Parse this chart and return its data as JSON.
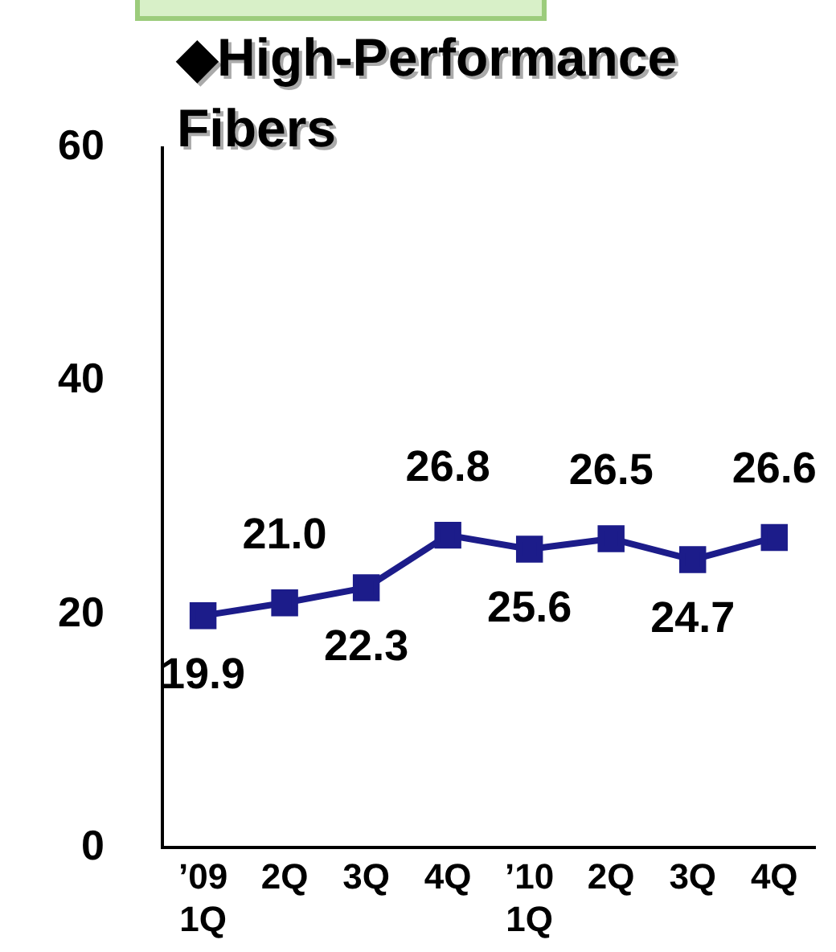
{
  "chart_data": {
    "type": "line",
    "title": "◆High-Performance Fibers",
    "categories": [
      "’09\n1Q",
      "2Q",
      "3Q",
      "4Q",
      "’10\n1Q",
      "2Q",
      "3Q",
      "4Q"
    ],
    "series": [
      {
        "color": "#1c1c8a",
        "values": [
          19.9,
          21.0,
          22.3,
          26.8,
          25.6,
          26.5,
          24.7,
          26.6
        ],
        "value_labels": [
          "19.9",
          "21.0",
          "22.3",
          "26.8",
          "25.6",
          "26.5",
          "24.7",
          "26.6"
        ]
      }
    ],
    "ylim": [
      0,
      60
    ],
    "yticks": [
      0,
      20,
      40,
      60
    ],
    "grid": false,
    "legend": false,
    "marker": "square",
    "line_style": "solid"
  }
}
